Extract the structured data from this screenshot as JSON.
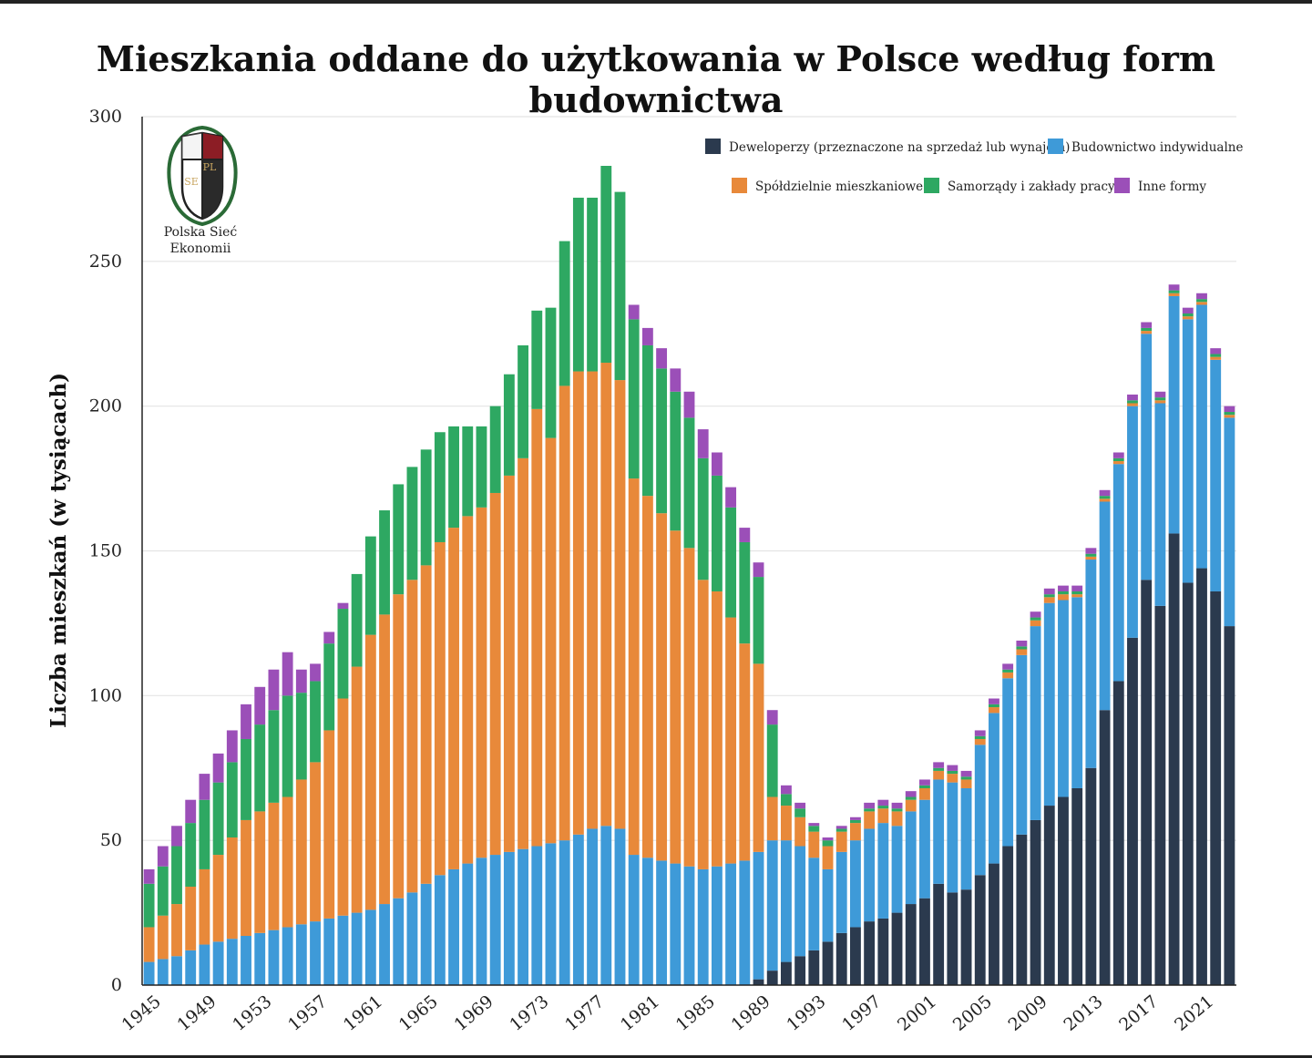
{
  "title": "Mieszkania oddane do użytkowania w Polsce według form budownictwa",
  "logo": {
    "line1": "Polska Sieć",
    "line2": "Ekonomii",
    "mark1": "PL",
    "mark2": "SE",
    "icon": "polska-siec-ekonomii-logo"
  },
  "chart_data": {
    "type": "bar",
    "stacked": true,
    "title": "Mieszkania oddane do użytkowania w Polsce według form budownictwa",
    "xlabel": "",
    "ylabel": "Liczba mieszkań (w tysiącach)",
    "ylim": [
      0,
      300
    ],
    "yticks": [
      0,
      50,
      100,
      150,
      200,
      250,
      300
    ],
    "xtick_labels": [
      "1945",
      "1949",
      "1953",
      "1957",
      "1961",
      "1965",
      "1969",
      "1973",
      "1977",
      "1981",
      "1985",
      "1989",
      "1993",
      "1997",
      "2001",
      "2005",
      "2009",
      "2013",
      "2017",
      "2021"
    ],
    "grid": true,
    "legend_position": "top-right",
    "categories": [
      1945,
      1946,
      1947,
      1948,
      1949,
      1950,
      1951,
      1952,
      1953,
      1954,
      1955,
      1956,
      1957,
      1958,
      1959,
      1960,
      1961,
      1962,
      1963,
      1964,
      1965,
      1966,
      1967,
      1968,
      1969,
      1970,
      1971,
      1972,
      1973,
      1974,
      1975,
      1976,
      1977,
      1978,
      1979,
      1980,
      1981,
      1982,
      1983,
      1984,
      1985,
      1986,
      1987,
      1988,
      1989,
      1990,
      1991,
      1992,
      1993,
      1994,
      1995,
      1996,
      1997,
      1998,
      1999,
      2000,
      2001,
      2002,
      2003,
      2004,
      2005,
      2006,
      2007,
      2008,
      2009,
      2010,
      2011,
      2012,
      2013,
      2014,
      2015,
      2016,
      2017,
      2018,
      2019,
      2020,
      2021,
      2022,
      2023
    ],
    "series": [
      {
        "name": "Deweloperzy (przeznaczone na sprzedaż lub wynajem)",
        "color": "#2b3a4e",
        "values": [
          0,
          0,
          0,
          0,
          0,
          0,
          0,
          0,
          0,
          0,
          0,
          0,
          0,
          0,
          0,
          0,
          0,
          0,
          0,
          0,
          0,
          0,
          0,
          0,
          0,
          0,
          0,
          0,
          0,
          0,
          0,
          0,
          0,
          0,
          0,
          0,
          0,
          0,
          0,
          0,
          0,
          0,
          0,
          0,
          2,
          5,
          8,
          10,
          12,
          15,
          18,
          20,
          22,
          23,
          25,
          28,
          30,
          35,
          32,
          33,
          38,
          42,
          48,
          52,
          57,
          62,
          65,
          68,
          75,
          95,
          105,
          120,
          140,
          131,
          156,
          139,
          144,
          136,
          124
        ]
      },
      {
        "name": "Budownictwo indywidualne",
        "color": "#3e9ad8",
        "values": [
          8,
          9,
          10,
          12,
          14,
          15,
          16,
          17,
          18,
          19,
          20,
          21,
          22,
          23,
          24,
          25,
          26,
          28,
          30,
          32,
          35,
          38,
          40,
          42,
          44,
          45,
          46,
          47,
          48,
          49,
          50,
          52,
          54,
          55,
          54,
          45,
          44,
          43,
          42,
          41,
          40,
          41,
          42,
          43,
          44,
          45,
          42,
          38,
          32,
          25,
          28,
          30,
          32,
          33,
          30,
          32,
          34,
          36,
          38,
          35,
          45,
          52,
          58,
          62,
          67,
          70,
          68,
          66,
          72,
          72,
          75,
          80,
          85,
          70,
          82,
          91,
          91,
          80,
          72
        ]
      },
      {
        "name": "Spółdzielnie mieszkaniowe",
        "color": "#e8893a",
        "values": [
          12,
          15,
          18,
          22,
          26,
          30,
          35,
          40,
          42,
          44,
          45,
          50,
          55,
          65,
          75,
          85,
          95,
          100,
          105,
          108,
          110,
          115,
          118,
          120,
          121,
          125,
          130,
          135,
          151,
          140,
          157,
          160,
          158,
          160,
          155,
          130,
          125,
          120,
          115,
          110,
          100,
          95,
          85,
          75,
          65,
          15,
          12,
          10,
          9,
          8,
          7,
          6,
          6,
          5,
          5,
          4,
          4,
          3,
          3,
          3,
          2,
          2,
          2,
          2,
          2,
          2,
          2,
          1,
          1,
          1,
          1,
          1,
          1,
          1,
          1,
          1,
          1,
          1,
          1
        ]
      },
      {
        "name": "Samorządy i zakłady pracy",
        "color": "#2ea862",
        "values": [
          15,
          17,
          20,
          22,
          24,
          25,
          26,
          28,
          30,
          32,
          35,
          30,
          28,
          30,
          31,
          32,
          34,
          36,
          38,
          39,
          40,
          38,
          35,
          31,
          28,
          30,
          35,
          39,
          34,
          45,
          50,
          60,
          60,
          68,
          65,
          55,
          52,
          50,
          48,
          45,
          42,
          40,
          38,
          35,
          30,
          25,
          4,
          3,
          2,
          2,
          1,
          1,
          1,
          1,
          1,
          1,
          1,
          1,
          1,
          1,
          1,
          1,
          1,
          1,
          1,
          1,
          1,
          1,
          1,
          1,
          1,
          1,
          1,
          1,
          1,
          1,
          1,
          1,
          1
        ]
      },
      {
        "name": "Inne formy",
        "color": "#9b4fb8",
        "values": [
          5,
          7,
          7,
          8,
          9,
          10,
          11,
          12,
          13,
          14,
          15,
          8,
          6,
          4,
          2,
          0,
          0,
          0,
          0,
          0,
          0,
          0,
          0,
          0,
          0,
          0,
          0,
          0,
          0,
          0,
          0,
          0,
          0,
          0,
          0,
          5,
          6,
          7,
          8,
          9,
          10,
          8,
          7,
          5,
          5,
          5,
          3,
          2,
          1,
          1,
          1,
          1,
          2,
          2,
          2,
          2,
          2,
          2,
          2,
          2,
          2,
          2,
          2,
          2,
          2,
          2,
          2,
          2,
          2,
          2,
          2,
          2,
          2,
          2,
          2,
          2,
          2,
          2,
          2
        ]
      }
    ]
  }
}
